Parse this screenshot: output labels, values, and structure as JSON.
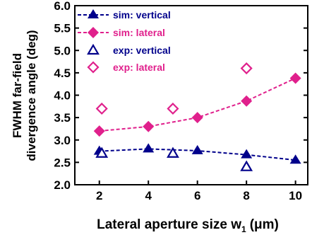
{
  "chart_data": {
    "type": "line",
    "xlabel": "Lateral aperture size w",
    "xlabel_subscript": "1",
    "xlabel_unit": "(μm)",
    "ylabel_line1": "FWHM far-field",
    "ylabel_line2": "divergence angle (deg)",
    "xlim": [
      1,
      10.5
    ],
    "ylim": [
      2.0,
      6.0
    ],
    "x_ticks": [
      2,
      4,
      6,
      8,
      10
    ],
    "y_ticks": [
      "2.0",
      "2.5",
      "3.0",
      "3.5",
      "4.0",
      "4.5",
      "5.0",
      "5.5",
      "6.0"
    ],
    "grid": false,
    "legend_position": "top-left",
    "series": [
      {
        "name": "sim: vertical",
        "color": "#00008b",
        "marker": "filled-triangle",
        "line": "dashed",
        "points": [
          [
            2,
            2.75
          ],
          [
            4,
            2.8
          ],
          [
            6,
            2.76
          ],
          [
            8,
            2.67
          ],
          [
            10,
            2.55
          ]
        ]
      },
      {
        "name": "sim: lateral",
        "color": "#e0208c",
        "marker": "filled-diamond",
        "line": "dashed",
        "points": [
          [
            2,
            3.2
          ],
          [
            4,
            3.3
          ],
          [
            6,
            3.5
          ],
          [
            8,
            3.87
          ],
          [
            10,
            4.38
          ]
        ]
      },
      {
        "name": "exp: vertical",
        "color": "#00008b",
        "marker": "open-triangle",
        "line": "none",
        "points": [
          [
            2.1,
            2.7
          ],
          [
            5.0,
            2.7
          ],
          [
            8.0,
            2.4
          ]
        ]
      },
      {
        "name": "exp: lateral",
        "color": "#e0208c",
        "marker": "open-diamond",
        "line": "none",
        "points": [
          [
            2.1,
            3.7
          ],
          [
            5.0,
            3.7
          ],
          [
            8.0,
            4.6
          ]
        ]
      }
    ]
  }
}
